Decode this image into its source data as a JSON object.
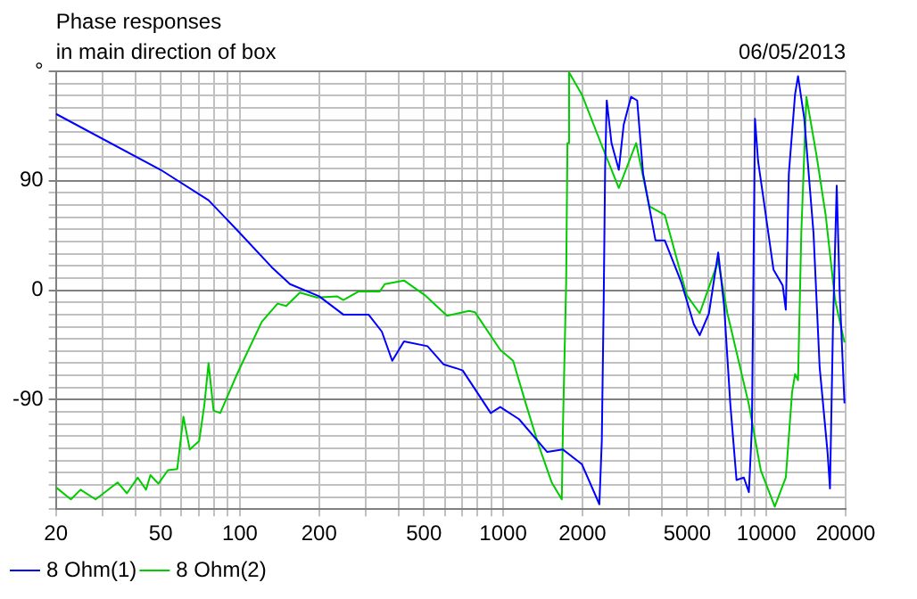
{
  "chart_data": {
    "type": "line",
    "title": "Phase responses",
    "subtitle": "in main direction of box",
    "annotations": [
      "06/05/2013"
    ],
    "xlim": [
      20,
      20000
    ],
    "ylim": [
      -180,
      180
    ],
    "log": "x",
    "grid": true,
    "legend": "bottom left",
    "marker": "none",
    "xticks": [
      20,
      {
        "value": 30,
        "label": null
      },
      {
        "value": 40,
        "label": null
      },
      50,
      {
        "value": 60,
        "label": null
      },
      {
        "value": 70,
        "label": null
      },
      {
        "value": 80,
        "label": null
      },
      {
        "value": 90,
        "label": null
      },
      100,
      200,
      {
        "value": 300,
        "label": null
      },
      {
        "value": 400,
        "label": null
      },
      500,
      {
        "value": 600,
        "label": null
      },
      {
        "value": 700,
        "label": null
      },
      {
        "value": 800,
        "label": null
      },
      {
        "value": 900,
        "label": null
      },
      1000,
      2000,
      {
        "value": 3000,
        "label": null
      },
      {
        "value": 4000,
        "label": null
      },
      5000,
      {
        "value": 6000,
        "label": null
      },
      {
        "value": 7000,
        "label": null
      },
      {
        "value": 8000,
        "label": null
      },
      {
        "value": 9000,
        "label": null
      },
      10000,
      20000
    ],
    "yticks": [
      {
        "value": -180,
        "label": null
      },
      {
        "value": -170,
        "label": null
      },
      {
        "value": -160,
        "label": null
      },
      {
        "value": -150,
        "label": null
      },
      {
        "value": -140,
        "label": null
      },
      {
        "value": -130,
        "label": null
      },
      {
        "value": -120,
        "label": null
      },
      {
        "value": -110,
        "label": null
      },
      {
        "value": -100,
        "label": null
      },
      -90,
      {
        "value": -80,
        "label": null
      },
      {
        "value": -70,
        "label": null
      },
      {
        "value": -60,
        "label": null
      },
      {
        "value": -50,
        "label": null
      },
      {
        "value": -40,
        "label": null
      },
      {
        "value": -30,
        "label": null
      },
      {
        "value": -20,
        "label": null
      },
      {
        "value": -10,
        "label": null
      },
      0,
      {
        "value": 10,
        "label": null
      },
      {
        "value": 20,
        "label": null
      },
      {
        "value": 30,
        "label": null
      },
      {
        "value": 40,
        "label": null
      },
      {
        "value": 50,
        "label": null
      },
      {
        "value": 60,
        "label": null
      },
      {
        "value": 70,
        "label": null
      },
      {
        "value": 80,
        "label": null
      },
      90,
      {
        "value": 100,
        "label": null
      },
      {
        "value": 110,
        "label": null
      },
      {
        "value": 120,
        "label": null
      },
      {
        "value": 130,
        "label": null
      },
      {
        "value": 140,
        "label": null
      },
      {
        "value": 150,
        "label": null
      },
      {
        "value": 160,
        "label": null
      },
      {
        "value": 170,
        "label": null
      },
      {
        "value": 180,
        "label": "°"
      }
    ],
    "series": [
      {
        "name": "8 Ohm(1)",
        "color": "#0000ff",
        "x": [
          20,
          50,
          76,
          100,
          132,
          155,
          200,
          247,
          308,
          346,
          379,
          420,
          516,
          594,
          660,
          702,
          897,
          975,
          1149,
          1470,
          1687,
          1990,
          2320,
          2370,
          2410,
          2440,
          2475,
          2580,
          2750,
          2870,
          3060,
          3230,
          3400,
          3790,
          4110,
          4760,
          5300,
          5580,
          6050,
          6560,
          6910,
          7290,
          7700,
          8210,
          8580,
          8810,
          9050,
          9300,
          9810,
          10640,
          11530,
          11850,
          12170,
          12850,
          13190,
          13930,
          15100,
          15930,
          17070,
          17440,
          17910,
          18500,
          19000,
          19800
        ],
        "values": [
          145,
          99,
          74,
          47,
          19,
          5,
          -5,
          -20,
          -20,
          -34,
          -58,
          -42,
          -46,
          -61,
          -64,
          -66,
          -101,
          -96,
          -106,
          -133,
          -131,
          -143,
          -176,
          -124,
          -8,
          101,
          156,
          121,
          99,
          136,
          159,
          156,
          96,
          41,
          41,
          6,
          -28,
          -37,
          -19,
          31,
          -13,
          -93,
          -156,
          -154,
          -166,
          -113,
          141,
          106,
          71,
          17,
          4,
          -16,
          96,
          161,
          176,
          141,
          47,
          -63,
          -133,
          -163,
          -28,
          86,
          -4,
          -93
        ]
      },
      {
        "name": "8 Ohm(2)",
        "color": "#00cc00",
        "x": [
          20,
          22.8,
          24.8,
          28.3,
          34.3,
          37.2,
          40.9,
          44,
          45.7,
          49,
          53.3,
          57.8,
          61,
          64.5,
          70,
          73.3,
          76,
          79.4,
          84.2,
          97.5,
          121,
          139,
          150,
          169,
          196,
          234,
          247,
          283,
          340,
          355,
          420,
          504,
          612,
          742,
          781,
          975,
          1091,
          1222,
          1367,
          1529,
          1670,
          1687,
          1735,
          1755,
          1780,
          1990,
          2350,
          2750,
          3200,
          3590,
          4110,
          4980,
          5580,
          6560,
          7110,
          8580,
          9520,
          10760,
          11850,
          12520,
          12850,
          13190,
          13570,
          14190,
          15500,
          16790,
          18240,
          19800
        ],
        "values": [
          -162,
          -172,
          -164,
          -172,
          -158,
          -167,
          -154,
          -164,
          -152,
          -159,
          -148,
          -147,
          -104,
          -131,
          -124,
          -94,
          -60,
          -99,
          -101,
          -69,
          -26,
          -11,
          -13,
          -2,
          -6,
          -5,
          -8,
          -1,
          -1,
          5,
          8,
          -4,
          -21,
          -17,
          -18,
          -49,
          -58,
          -94,
          -128,
          -158,
          -172,
          -113,
          6,
          121,
          179,
          161,
          121,
          84,
          121,
          69,
          62,
          -4,
          -19,
          24,
          -19,
          -94,
          -148,
          -178,
          -154,
          -84,
          -69,
          -74,
          47,
          159,
          111,
          62,
          -8,
          -43
        ]
      }
    ]
  }
}
